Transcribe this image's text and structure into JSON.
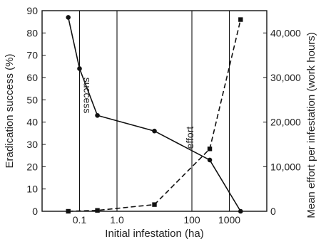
{
  "chart_data": {
    "type": "line",
    "xscale": "log",
    "xlabel": "Initial infestation (ha)",
    "ylabel_left": "Eradication success (%)",
    "ylabel_right": "Mean effort per infestation (work hours)",
    "xlim": [
      0.01,
      10000
    ],
    "ylim_left": [
      0,
      90
    ],
    "ylim_right": [
      0,
      45000
    ],
    "x_ticks": [
      0.1,
      1.0,
      100,
      1000
    ],
    "x_tick_labels": [
      "0.1",
      "1.0",
      "100",
      "1000"
    ],
    "x_gridlines": [
      0.1,
      1.0,
      100,
      1000
    ],
    "y_left_ticks": [
      0,
      10,
      20,
      30,
      40,
      50,
      60,
      70,
      80,
      90
    ],
    "y_right_ticks": [
      0,
      10000,
      20000,
      30000,
      40000
    ],
    "y_right_tick_labels": [
      "0",
      "10,000",
      "20,000",
      "30,000",
      "40,000"
    ],
    "grid": "vertical lines at x ticks",
    "series": [
      {
        "name": "success",
        "axis": "left",
        "style": "solid",
        "marker": "circle",
        "color": "#111111",
        "x": [
          0.05,
          0.1,
          0.3,
          10,
          300,
          2000
        ],
        "y": [
          87,
          64,
          43,
          36,
          23,
          0
        ]
      },
      {
        "name": "effort",
        "axis": "right",
        "style": "dashed",
        "marker": "square",
        "color": "#111111",
        "x": [
          0.05,
          0.3,
          10,
          300,
          2000
        ],
        "y": [
          0,
          200,
          1500,
          14000,
          43000
        ]
      }
    ]
  }
}
